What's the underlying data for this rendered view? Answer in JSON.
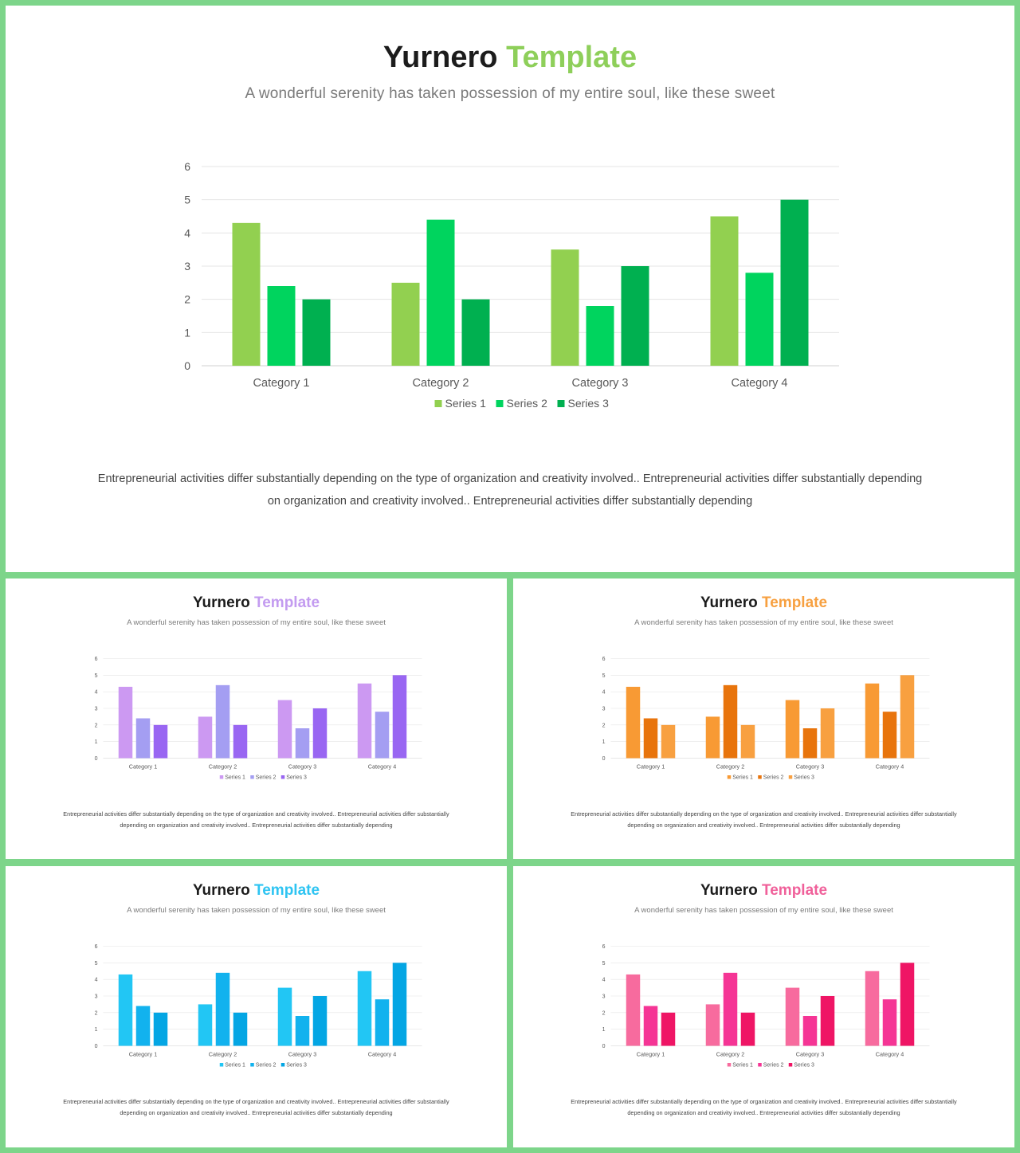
{
  "slides": [
    {
      "id": "main",
      "title_main": "Yurnero",
      "title_accent": "Template",
      "accent_color": "#8ecf5a",
      "subtitle": "A wonderful serenity has taken possession of my entire soul, like these sweet",
      "body": "Entrepreneurial activities differ substantially depending on the type of organization and creativity involved.. Entrepreneurial activities differ substantially depending on organization and creativity involved.. Entrepreneurial activities differ substantially depending",
      "series_colors": [
        "#92d050",
        "#00d45e",
        "#00b050"
      ]
    },
    {
      "id": "s1",
      "title_main": "Yurnero",
      "title_accent": "Template",
      "accent_color": "#c39bf0",
      "subtitle": "A wonderful serenity has taken possession of my entire soul, like these sweet",
      "body": "Entrepreneurial activities differ substantially depending on the type of organization and creativity involved.. Entrepreneurial activities differ substantially depending on organization and creativity involved.. Entrepreneurial activities differ substantially depending",
      "series_colors": [
        "#cc99f2",
        "#a49ef2",
        "#9966f2"
      ]
    },
    {
      "id": "s2",
      "title_main": "Yurnero",
      "title_accent": "Template",
      "accent_color": "#f7a040",
      "subtitle": "A wonderful serenity has taken possession of my entire soul, like these sweet",
      "body": "Entrepreneurial activities differ substantially depending on the type of organization and creativity involved.. Entrepreneurial activities differ substantially depending on organization and creativity involved.. Entrepreneurial activities differ substantially depending",
      "series_colors": [
        "#f89a34",
        "#e8740c",
        "#f8a040"
      ]
    },
    {
      "id": "s3",
      "title_main": "Yurnero",
      "title_accent": "Template",
      "accent_color": "#2ec4f2",
      "subtitle": "A wonderful serenity has taken possession of my entire soul, like these sweet",
      "body": "Entrepreneurial activities differ substantially depending on the type of organization and creativity involved.. Entrepreneurial activities differ substantially depending on organization and creativity involved.. Entrepreneurial activities differ substantially depending",
      "series_colors": [
        "#22c6f4",
        "#12b2ee",
        "#04a6e4"
      ]
    },
    {
      "id": "s4",
      "title_main": "Yurnero",
      "title_accent": "Template",
      "accent_color": "#f0609a",
      "subtitle": "A wonderful serenity has taken possession of my entire soul, like these sweet",
      "body": "Entrepreneurial activities differ substantially depending on the type of organization and creativity involved.. Entrepreneurial activities differ substantially depending on organization and creativity involved.. Entrepreneurial activities differ substantially depending",
      "series_colors": [
        "#f76b9e",
        "#f53595",
        "#ef1565"
      ]
    }
  ],
  "chart_data": [
    {
      "type": "bar",
      "categories": [
        "Category 1",
        "Category 2",
        "Category 3",
        "Category 4"
      ],
      "series": [
        {
          "name": "Series 1",
          "values": [
            4.3,
            2.5,
            3.5,
            4.5
          ]
        },
        {
          "name": "Series 2",
          "values": [
            2.4,
            4.4,
            1.8,
            2.8
          ]
        },
        {
          "name": "Series 3",
          "values": [
            2,
            2,
            3,
            5
          ]
        }
      ],
      "yticks": [
        "0",
        "1",
        "2",
        "3",
        "4",
        "5",
        "6"
      ],
      "ylim": [
        0,
        6
      ],
      "grid": true,
      "legend": "bottom"
    },
    {
      "type": "bar",
      "categories": [
        "Category 1",
        "Category 2",
        "Category 3",
        "Category 4"
      ],
      "series": [
        {
          "name": "Series 1",
          "values": [
            4.3,
            2.5,
            3.5,
            4.5
          ]
        },
        {
          "name": "Series 2",
          "values": [
            2.4,
            4.4,
            1.8,
            2.8
          ]
        },
        {
          "name": "Series 3",
          "values": [
            2,
            2,
            3,
            5
          ]
        }
      ],
      "yticks": [
        "0",
        "1",
        "2",
        "3",
        "4",
        "5",
        "6"
      ],
      "ylim": [
        0,
        6
      ],
      "grid": true,
      "legend": "bottom"
    },
    {
      "type": "bar",
      "categories": [
        "Category 1",
        "Category 2",
        "Category 3",
        "Category 4"
      ],
      "series": [
        {
          "name": "Series 1",
          "values": [
            4.3,
            2.5,
            3.5,
            4.5
          ]
        },
        {
          "name": "Series 2",
          "values": [
            2.4,
            4.4,
            1.8,
            2.8
          ]
        },
        {
          "name": "Series 3",
          "values": [
            2,
            2,
            3,
            5
          ]
        }
      ],
      "yticks": [
        "0",
        "1",
        "2",
        "3",
        "4",
        "5",
        "6"
      ],
      "ylim": [
        0,
        6
      ],
      "grid": true,
      "legend": "bottom"
    },
    {
      "type": "bar",
      "categories": [
        "Category 1",
        "Category 2",
        "Category 3",
        "Category 4"
      ],
      "series": [
        {
          "name": "Series 1",
          "values": [
            4.3,
            2.5,
            3.5,
            4.5
          ]
        },
        {
          "name": "Series 2",
          "values": [
            2.4,
            4.4,
            1.8,
            2.8
          ]
        },
        {
          "name": "Series 3",
          "values": [
            2,
            2,
            3,
            5
          ]
        }
      ],
      "yticks": [
        "0",
        "1",
        "2",
        "3",
        "4",
        "5",
        "6"
      ],
      "ylim": [
        0,
        6
      ],
      "grid": true,
      "legend": "bottom"
    },
    {
      "type": "bar",
      "categories": [
        "Category 1",
        "Category 2",
        "Category 3",
        "Category 4"
      ],
      "series": [
        {
          "name": "Series 1",
          "values": [
            4.3,
            2.5,
            3.5,
            4.5
          ]
        },
        {
          "name": "Series 2",
          "values": [
            2.4,
            4.4,
            1.8,
            2.8
          ]
        },
        {
          "name": "Series 3",
          "values": [
            2,
            2,
            3,
            5
          ]
        }
      ],
      "yticks": [
        "0",
        "1",
        "2",
        "3",
        "4",
        "5",
        "6"
      ],
      "ylim": [
        0,
        6
      ],
      "grid": true,
      "legend": "bottom"
    }
  ]
}
